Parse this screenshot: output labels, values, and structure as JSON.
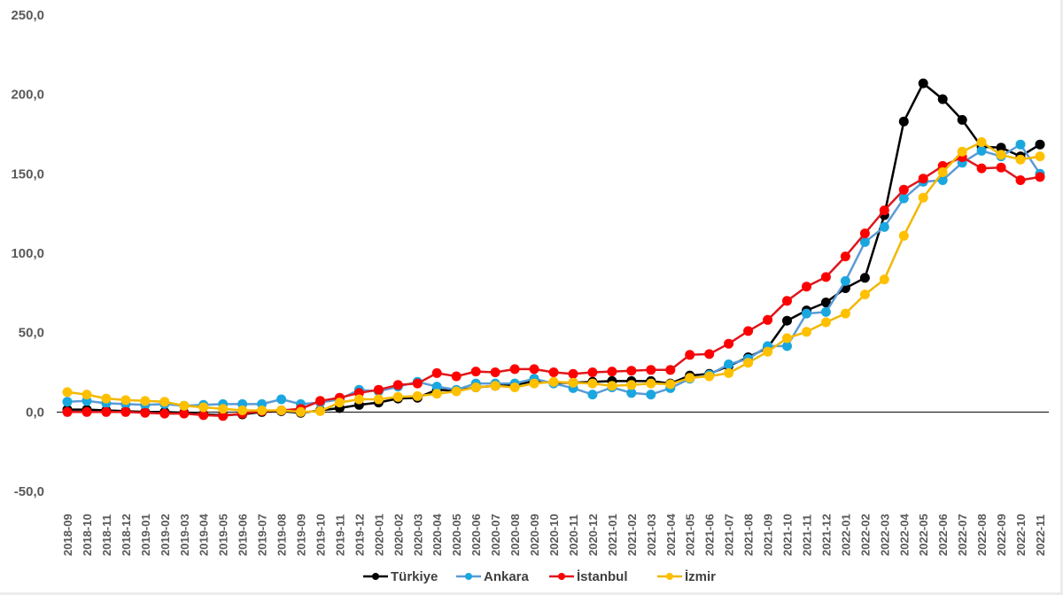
{
  "chart_data": {
    "type": "line",
    "title": "",
    "xlabel": "",
    "ylabel": "",
    "ylim": [
      -50,
      250
    ],
    "yticks": [
      "-50,0",
      "0,0",
      "50,0",
      "100,0",
      "150,0",
      "200,0",
      "250,0"
    ],
    "ytick_values": [
      -50,
      0,
      50,
      100,
      150,
      200,
      250
    ],
    "grid": false,
    "legend_position": "bottom",
    "categories": [
      "2018-09",
      "2018-10",
      "2018-11",
      "2018-12",
      "2019-01",
      "2019-02",
      "2019-03",
      "2019-04",
      "2019-05",
      "2019-06",
      "2019-07",
      "2019-08",
      "2019-09",
      "2019-10",
      "2019-11",
      "2019-12",
      "2020-01",
      "2020-02",
      "2020-03",
      "2020-04",
      "2020-05",
      "2020-06",
      "2020-07",
      "2020-08",
      "2020-09",
      "2020-10",
      "2020-11",
      "2020-12",
      "2021-01",
      "2021-02",
      "2021-03",
      "2021-04",
      "2021-05",
      "2021-06",
      "2021-07",
      "2021-08",
      "2021-09",
      "2021-10",
      "2021-11",
      "2021-12",
      "2022-01",
      "2022-02",
      "2022-03",
      "2022-04",
      "2022-05",
      "2022-06",
      "2022-07",
      "2022-08",
      "2022-09",
      "2022-10",
      "2022-11"
    ],
    "series": [
      {
        "name": "Türkiye",
        "color": "#000000",
        "line_color": "#000000",
        "values": [
          1.5,
          1.5,
          1,
          0.5,
          0,
          0,
          -0.5,
          -1.5,
          -2,
          -1.5,
          0,
          0.5,
          -0.5,
          1,
          2.5,
          4.5,
          6,
          8.5,
          9,
          14,
          13.5,
          15.5,
          16.5,
          17,
          19.5,
          18.5,
          18.5,
          19,
          19.5,
          19.5,
          19.5,
          18,
          23,
          24,
          29,
          34.5,
          40.5,
          57.5,
          64,
          69,
          78,
          84.5,
          124,
          183,
          207,
          197,
          184,
          167,
          166.5,
          161,
          168.5
        ]
      },
      {
        "name": "Ankara",
        "color": "#1aa7e0",
        "line_color": "#5b9bd5",
        "values": [
          6.5,
          7,
          5.5,
          5,
          4.5,
          5,
          4,
          4.5,
          5,
          5,
          5,
          8,
          5,
          6,
          8,
          14,
          13,
          16,
          19,
          16,
          14,
          18,
          18,
          18,
          21,
          18,
          15,
          11,
          15.5,
          12,
          11,
          15,
          21,
          23.5,
          30,
          33.5,
          41.5,
          41.5,
          62,
          63,
          82.5,
          107,
          116.5,
          134.5,
          145,
          146,
          157,
          164.5,
          161,
          168.5,
          150
        ]
      },
      {
        "name": "İstanbul",
        "color": "#ff0000",
        "line_color": "#e0161b",
        "values": [
          0,
          0,
          0,
          0,
          -0.5,
          -1,
          -1,
          -2,
          -2.5,
          -1,
          0.5,
          1,
          2,
          7,
          9,
          12,
          14,
          17,
          18,
          24.5,
          22.5,
          25.5,
          25,
          27,
          27,
          25,
          24,
          25,
          25.5,
          26,
          26.5,
          26.5,
          36,
          36.5,
          43,
          51,
          58,
          70,
          79,
          85,
          98,
          112.5,
          127,
          140,
          147,
          155,
          160.5,
          153.5,
          154,
          146,
          148
        ]
      },
      {
        "name": "İzmir",
        "color": "#ffc000",
        "line_color": "#f0b800",
        "values": [
          12.5,
          11,
          8.5,
          7.5,
          7,
          6.5,
          4,
          3,
          2,
          1,
          1,
          1,
          0,
          0.5,
          6,
          8,
          8,
          9.5,
          10,
          11.5,
          13,
          15.5,
          16.5,
          15.5,
          18,
          19,
          18.5,
          18,
          16.5,
          17,
          18,
          17.5,
          21.5,
          22.5,
          24.5,
          31,
          38,
          46.5,
          50.5,
          56.5,
          62,
          74,
          83.5,
          111,
          135,
          151,
          164,
          170,
          162,
          159,
          161
        ]
      }
    ]
  }
}
